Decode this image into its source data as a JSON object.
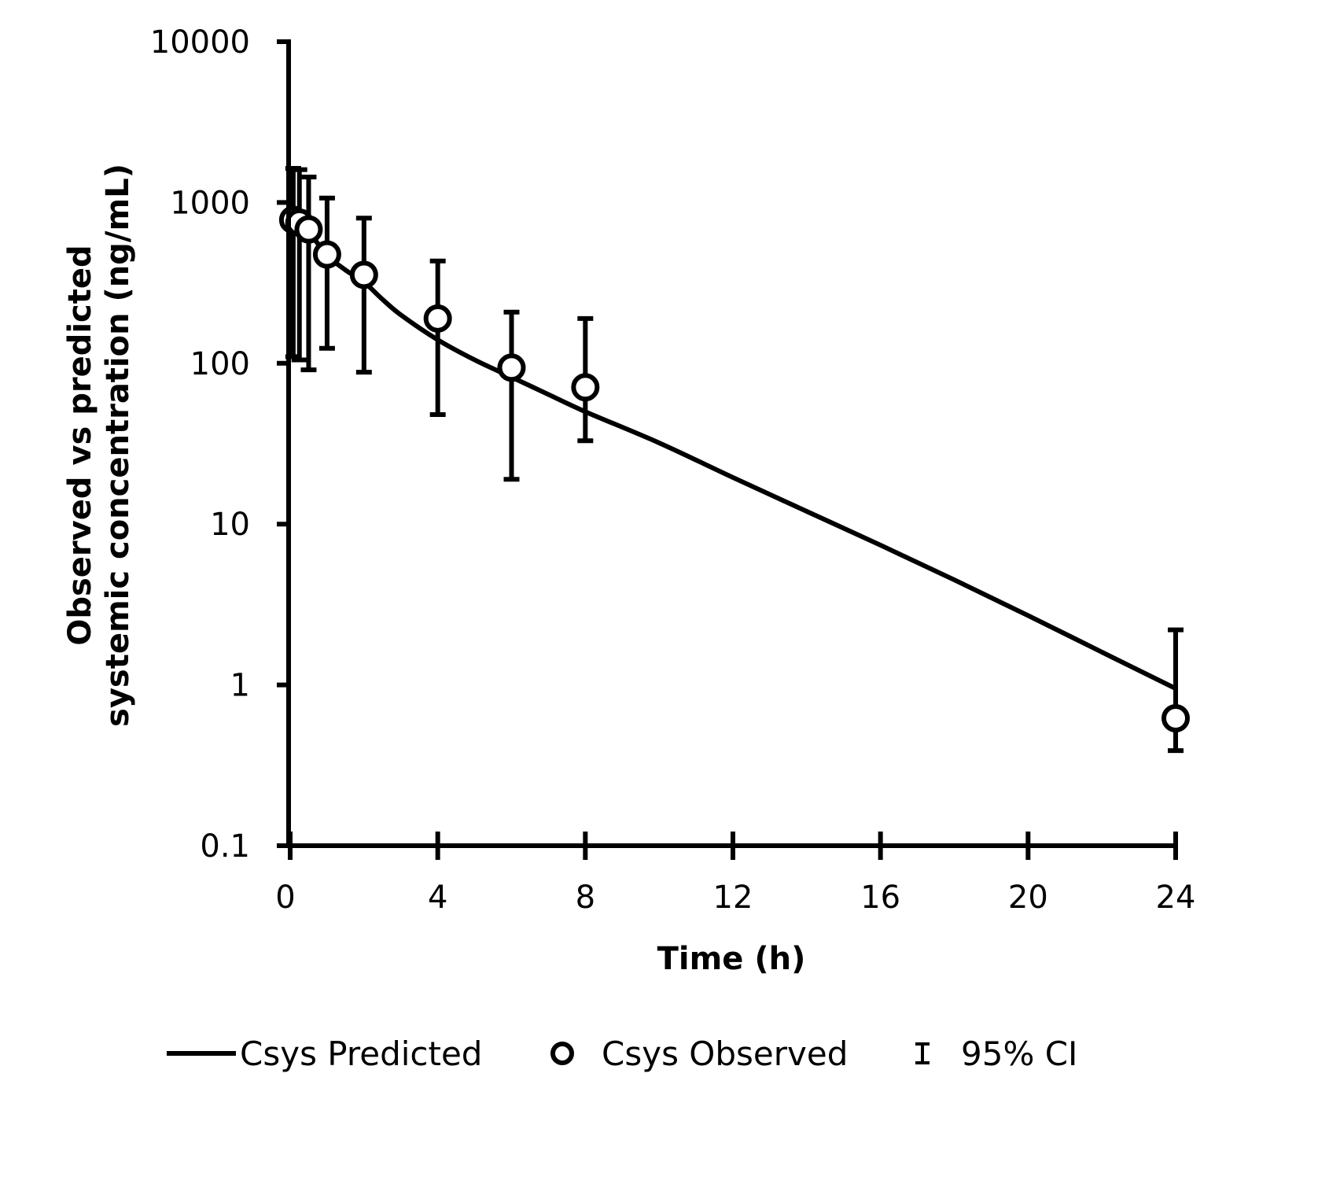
{
  "chart_data": {
    "type": "scatter",
    "title": "",
    "xlabel": "Time (h)",
    "ylabel_lines": [
      "Observed vs predicted",
      "systemic concentration (ng/mL)"
    ],
    "ylabel": "Observed vs predicted systemic concentration (ng/mL)",
    "x_scale": "linear",
    "y_scale": "log",
    "xlim": [
      0,
      24
    ],
    "ylim": [
      0.1,
      10000
    ],
    "x_ticks": [
      0,
      4,
      8,
      12,
      16,
      20,
      24
    ],
    "x_tick_labels": [
      "0",
      "4",
      "8",
      "12",
      "16",
      "20",
      "24"
    ],
    "y_ticks": [
      0.1,
      1,
      10,
      100,
      1000,
      10000
    ],
    "y_tick_labels": [
      "0.1",
      "1",
      "10",
      "100",
      "1000",
      "10000"
    ],
    "grid": false,
    "legend_position": "bottom",
    "series": [
      {
        "name": "Csys Predicted",
        "kind": "line",
        "color": "#000000",
        "x": [
          0,
          0.25,
          0.5,
          1,
          1.5,
          2,
          2.5,
          3,
          4,
          5,
          6,
          7,
          8,
          10,
          12,
          14,
          16,
          18,
          20,
          22,
          24
        ],
        "y": [
          800,
          740,
          660,
          470,
          380,
          320,
          250,
          200,
          140,
          105,
          82,
          64,
          50,
          32,
          19.5,
          12,
          7.4,
          4.5,
          2.7,
          1.6,
          0.95
        ]
      },
      {
        "name": "Csys Observed",
        "kind": "markers",
        "marker": "open-circle",
        "color": "#000000",
        "x": [
          0.083,
          0.25,
          0.5,
          1,
          2,
          4,
          6,
          8,
          24
        ],
        "y": [
          780,
          750,
          680,
          475,
          355,
          190,
          94,
          71,
          0.62
        ]
      },
      {
        "name": "95% CI",
        "kind": "errorbar",
        "color": "#000000",
        "x": [
          0.083,
          0.25,
          0.5,
          1,
          2,
          4,
          6,
          8,
          24
        ],
        "lower": [
          110,
          105,
          91,
          124,
          88,
          48,
          19,
          33,
          0.39
        ],
        "upper": [
          1630,
          1600,
          1440,
          1065,
          800,
          433,
          208,
          190,
          2.2
        ]
      }
    ],
    "legend": [
      {
        "label": "Csys Predicted",
        "symbol": "line"
      },
      {
        "label": "Csys Observed",
        "symbol": "open-circle"
      },
      {
        "label": "95% CI",
        "symbol": "errorbar"
      }
    ]
  }
}
